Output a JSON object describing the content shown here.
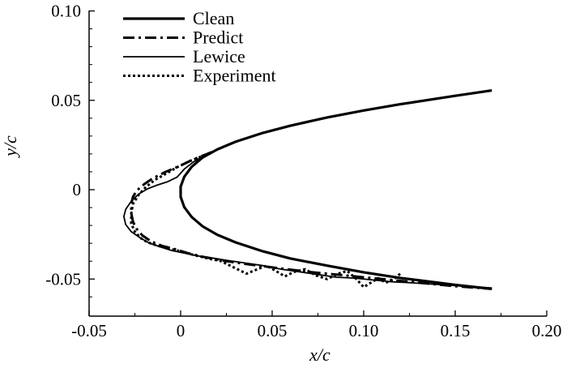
{
  "chart_data": {
    "type": "line",
    "title": "",
    "xlabel": "x/c",
    "ylabel": "y/c",
    "xlim": [
      -0.05,
      0.2
    ],
    "ylim": [
      -0.065,
      0.1
    ],
    "xticks": [
      -0.05,
      0,
      0.05,
      0.1,
      0.15,
      0.2
    ],
    "xtick_labels": [
      "-0.05",
      "0",
      "0.05",
      "0.10",
      "0.15",
      "0.20"
    ],
    "yticks": [
      -0.05,
      0,
      0.05,
      0.1
    ],
    "ytick_labels": [
      "-0.05",
      "0",
      "0.05",
      "0.10"
    ],
    "grid": false,
    "legend_position": "top-left",
    "series": [
      {
        "name": "Clean",
        "style": "solid-thick",
        "x": [
          0.17,
          0.15,
          0.12,
          0.1,
          0.08,
          0.06,
          0.045,
          0.03,
          0.02,
          0.012,
          0.006,
          0.002,
          0.0,
          0.0,
          0.002,
          0.006,
          0.012,
          0.02,
          0.03,
          0.045,
          0.06,
          0.08,
          0.1,
          0.12,
          0.15,
          0.17
        ],
        "y": [
          0.0555,
          0.0525,
          0.0478,
          0.0443,
          0.0404,
          0.0358,
          0.0318,
          0.0268,
          0.0225,
          0.018,
          0.0128,
          0.0072,
          0.0017,
          -0.004,
          -0.0098,
          -0.0153,
          -0.0205,
          -0.0252,
          -0.0295,
          -0.0345,
          -0.0385,
          -0.0425,
          -0.0462,
          -0.0494,
          -0.0533,
          -0.0555
        ]
      },
      {
        "name": "Predict",
        "style": "dash-dot",
        "x": [
          0.017,
          0.012,
          0.006,
          0.0,
          -0.008,
          -0.015,
          -0.02,
          -0.024,
          -0.026,
          -0.027,
          -0.027,
          -0.026,
          -0.024,
          -0.021,
          -0.016,
          -0.01,
          -0.004,
          0.004,
          0.012,
          0.022,
          0.035,
          0.05,
          0.07,
          0.09,
          0.11,
          0.13,
          0.15,
          0.17
        ],
        "y": [
          0.021,
          0.019,
          0.0165,
          0.0135,
          0.01,
          0.0065,
          0.003,
          -0.0005,
          -0.004,
          -0.008,
          -0.013,
          -0.018,
          -0.022,
          -0.0255,
          -0.029,
          -0.0315,
          -0.033,
          -0.0355,
          -0.0375,
          -0.0395,
          -0.0415,
          -0.0435,
          -0.046,
          -0.048,
          -0.05,
          -0.052,
          -0.054,
          -0.0555
        ]
      },
      {
        "name": "Lewice",
        "style": "solid-thin",
        "x": [
          0.012,
          0.007,
          0.002,
          -0.002,
          -0.007,
          -0.013,
          -0.018,
          -0.023,
          -0.027,
          -0.03,
          -0.031,
          -0.03,
          -0.027,
          -0.022,
          -0.017,
          -0.011,
          -0.005,
          0.002,
          0.009,
          0.016,
          0.025,
          0.035,
          0.045,
          0.055,
          0.065,
          0.075,
          0.085,
          0.095,
          0.105,
          0.115,
          0.125,
          0.14,
          0.155,
          0.17
        ],
        "y": [
          0.0185,
          0.0155,
          0.0115,
          0.007,
          0.0045,
          0.0025,
          0.0005,
          -0.0025,
          -0.0065,
          -0.011,
          -0.015,
          -0.0195,
          -0.0235,
          -0.027,
          -0.03,
          -0.032,
          -0.034,
          -0.0355,
          -0.037,
          -0.038,
          -0.0395,
          -0.041,
          -0.0425,
          -0.0445,
          -0.046,
          -0.0475,
          -0.049,
          -0.0495,
          -0.0505,
          -0.0515,
          -0.052,
          -0.053,
          -0.054,
          -0.055
        ]
      },
      {
        "name": "Experiment",
        "style": "dotted",
        "x": [
          0.016,
          0.01,
          0.004,
          -0.002,
          -0.008,
          -0.014,
          -0.019,
          -0.023,
          -0.026,
          -0.027,
          -0.027,
          -0.025,
          -0.022,
          -0.018,
          -0.012,
          -0.006,
          0.0,
          0.007,
          0.015,
          0.022,
          0.03,
          0.036,
          0.042,
          0.047,
          0.052,
          0.057,
          0.062,
          0.068,
          0.074,
          0.08,
          0.086,
          0.091,
          0.096,
          0.1,
          0.104,
          0.108,
          0.112,
          0.116,
          0.12
        ],
        "y": [
          0.0205,
          0.018,
          0.0155,
          0.0125,
          0.009,
          0.0055,
          0.0015,
          -0.003,
          -0.008,
          -0.0135,
          -0.019,
          -0.0235,
          -0.027,
          -0.0295,
          -0.0315,
          -0.033,
          -0.0345,
          -0.0365,
          -0.0385,
          -0.04,
          -0.044,
          -0.047,
          -0.0445,
          -0.0425,
          -0.0455,
          -0.0485,
          -0.046,
          -0.0445,
          -0.048,
          -0.05,
          -0.047,
          -0.0455,
          -0.05,
          -0.0545,
          -0.052,
          -0.0495,
          -0.052,
          -0.0505,
          -0.047
        ]
      }
    ]
  }
}
